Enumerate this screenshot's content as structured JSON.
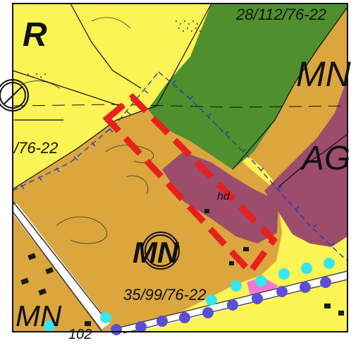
{
  "map": {
    "labels": {
      "zone_r": "R",
      "zone_mn_top": "MN",
      "zone_ag": "AG",
      "zone_mn_center": "MN",
      "zone_mn_bottom_left": "MN",
      "plot_top": "28/112/76-22",
      "plot_left": "/76-22",
      "plot_bottom": "35/99/76-22",
      "plot_102": "102",
      "building_hd": "hd"
    },
    "colors": {
      "yellow_zone": "#fcf354",
      "orange_zone": "#dba63e",
      "green_zone": "#4f8f2e",
      "purple_zone": "#9c4d6b",
      "red_outline": "#e8201f",
      "blue_line": "#1f3ab0",
      "cyan_dots": "#37e6ef",
      "violet_dots": "#5b4fd6",
      "pink_patch": "#f07ad2"
    }
  }
}
